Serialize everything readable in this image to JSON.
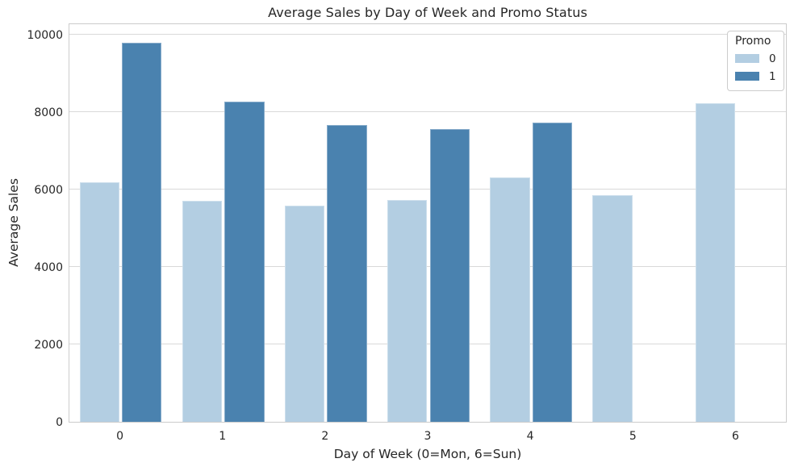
{
  "chart_data": {
    "type": "bar",
    "title": "Average Sales by Day of Week and Promo Status",
    "xlabel": "Day of Week (0=Mon, 6=Sun)",
    "ylabel": "Average Sales",
    "categories": [
      "0",
      "1",
      "2",
      "3",
      "4",
      "5",
      "6"
    ],
    "series": [
      {
        "name": "0",
        "color": "#b3cee2",
        "values": [
          6180,
          5700,
          5585,
          5735,
          6320,
          5850,
          8220
        ]
      },
      {
        "name": "1",
        "color": "#4a82af",
        "values": [
          9780,
          8265,
          7665,
          7570,
          7735,
          null,
          null
        ]
      }
    ],
    "legend": {
      "title": "Promo",
      "entries": [
        "0",
        "1"
      ],
      "position": "upper-right"
    },
    "ylim": [
      0,
      10310
    ],
    "yticks": [
      0,
      2000,
      4000,
      6000,
      8000,
      10000
    ],
    "grid": true,
    "colors": {
      "grid": "#d9d9d9",
      "spine": "#cccccc",
      "text": "#262626",
      "background": "#ffffff"
    }
  }
}
